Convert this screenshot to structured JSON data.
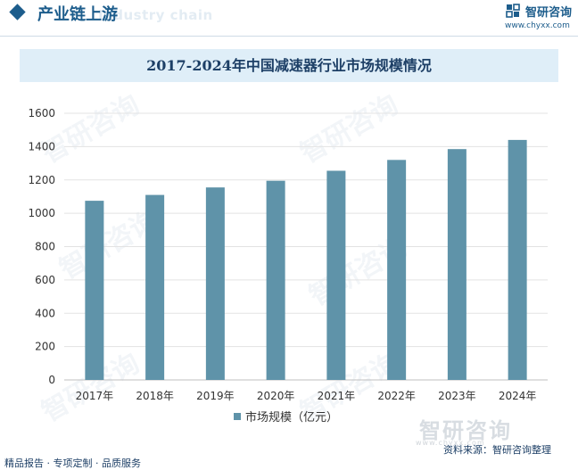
{
  "header": {
    "section_title": "产业链上游",
    "section_ghost": "Industry chain",
    "brand_name": "智研咨询",
    "brand_url": "www.chyxx.com"
  },
  "watermark": {
    "text": "智研咨询"
  },
  "footer": {
    "left": "精品报告 · 专项定制 · 品质服务",
    "source": "资料来源：智研咨询整理",
    "logo_text": "智研咨询",
    "logo_url": "www.chyxx.com"
  },
  "colors": {
    "bar": "#5f93a9",
    "accent": "#1d5d8c",
    "title_bar": "#dfeef8"
  },
  "chart_data": {
    "type": "bar",
    "title": "2017-2024年中国减速器行业市场规模情况",
    "categories": [
      "2017年",
      "2018年",
      "2019年",
      "2020年",
      "2021年",
      "2022年",
      "2023年",
      "2024年"
    ],
    "series": [
      {
        "name": "市场规模（亿元）",
        "values": [
          1075,
          1110,
          1155,
          1195,
          1255,
          1320,
          1385,
          1440
        ]
      }
    ],
    "xlabel": "",
    "ylabel": "",
    "ylim": [
      0,
      1600
    ],
    "yticks": [
      0,
      200,
      400,
      600,
      800,
      1000,
      1200,
      1400,
      1600
    ],
    "grid": true,
    "legend": "bottom-center"
  }
}
